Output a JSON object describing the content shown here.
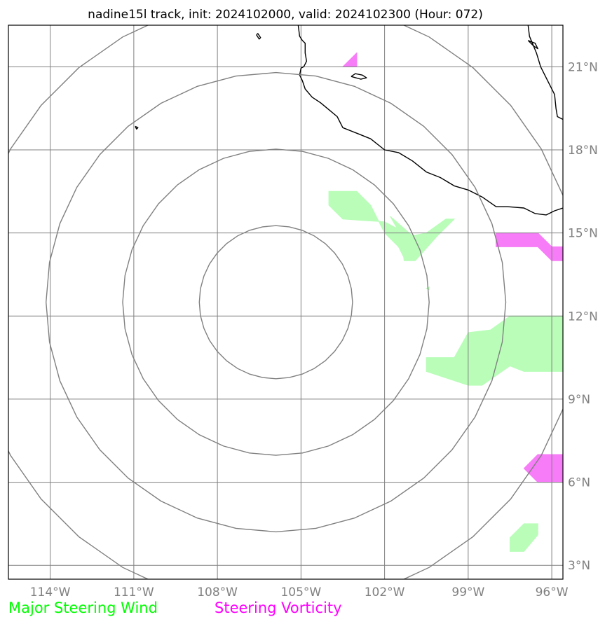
{
  "title": "nadine15l track, init: 2024102000, valid: 2024102300 (Hour: 072)",
  "map": {
    "lon_range": [
      -115.5,
      -95.6
    ],
    "lat_range": [
      2.5,
      22.5
    ],
    "center": {
      "lon": -105.9,
      "lat": 12.5
    },
    "range_ring_radii_deg": [
      2.75,
      5.5,
      8.25,
      11.0
    ],
    "lon_ticks": [
      {
        "value": -114,
        "label": "114°W"
      },
      {
        "value": -111,
        "label": "111°W"
      },
      {
        "value": -108,
        "label": "108°W"
      },
      {
        "value": -105,
        "label": "105°W"
      },
      {
        "value": -102,
        "label": "102°W"
      },
      {
        "value": -99,
        "label": "99°W"
      },
      {
        "value": -96,
        "label": "96°W"
      }
    ],
    "lat_ticks": [
      {
        "value": 21,
        "label": "21°N"
      },
      {
        "value": 18,
        "label": "18°N"
      },
      {
        "value": 15,
        "label": "15°N"
      },
      {
        "value": 12,
        "label": "12°N"
      },
      {
        "value": 9,
        "label": "9°N"
      },
      {
        "value": 6,
        "label": "6°N"
      },
      {
        "value": 3,
        "label": "3°N"
      }
    ],
    "colors": {
      "steering_wind": "#b9fdb9",
      "steering_vorticity": "#f77cf7",
      "grid": "#808080",
      "coast": "#000000"
    },
    "coastlines": [
      [
        [
          -105.1,
          22.5
        ],
        [
          -105.05,
          22.1
        ],
        [
          -104.95,
          21.95
        ],
        [
          -104.85,
          21.85
        ],
        [
          -104.85,
          21.5
        ],
        [
          -104.8,
          21.2
        ],
        [
          -104.9,
          21.0
        ],
        [
          -105.0,
          20.95
        ],
        [
          -105.05,
          20.7
        ],
        [
          -104.95,
          20.5
        ],
        [
          -104.85,
          20.2
        ],
        [
          -104.6,
          19.9
        ],
        [
          -104.3,
          19.7
        ],
        [
          -104.0,
          19.45
        ],
        [
          -103.7,
          19.2
        ],
        [
          -103.5,
          18.8
        ],
        [
          -103.0,
          18.6
        ],
        [
          -102.5,
          18.4
        ],
        [
          -102.0,
          18.0
        ],
        [
          -101.5,
          17.9
        ],
        [
          -101.0,
          17.6
        ],
        [
          -100.5,
          17.2
        ],
        [
          -100.0,
          17.0
        ],
        [
          -99.5,
          16.7
        ],
        [
          -99.0,
          16.55
        ],
        [
          -98.5,
          16.3
        ],
        [
          -98.0,
          15.95
        ],
        [
          -97.6,
          15.95
        ],
        [
          -97.0,
          15.9
        ],
        [
          -96.6,
          15.7
        ],
        [
          -96.2,
          15.65
        ],
        [
          -95.9,
          15.8
        ],
        [
          -95.6,
          15.9
        ]
      ],
      [
        [
          -96.85,
          22.5
        ],
        [
          -96.8,
          22.1
        ],
        [
          -96.55,
          21.5
        ],
        [
          -96.4,
          21.0
        ],
        [
          -96.15,
          20.5
        ],
        [
          -95.9,
          20.0
        ],
        [
          -95.85,
          19.5
        ],
        [
          -95.8,
          19.2
        ],
        [
          -95.6,
          19.1
        ]
      ],
      [
        [
          -96.85,
          21.95
        ],
        [
          -96.65,
          21.75
        ],
        [
          -96.5,
          21.65
        ],
        [
          -96.6,
          21.85
        ],
        [
          -96.85,
          21.95
        ]
      ],
      [
        [
          -103.2,
          20.65
        ],
        [
          -102.85,
          20.55
        ],
        [
          -102.65,
          20.6
        ],
        [
          -102.8,
          20.7
        ],
        [
          -103.05,
          20.75
        ],
        [
          -103.2,
          20.65
        ]
      ],
      [
        [
          -106.6,
          22.15
        ],
        [
          -106.5,
          22.0
        ],
        [
          -106.45,
          22.05
        ],
        [
          -106.55,
          22.2
        ],
        [
          -106.6,
          22.15
        ]
      ],
      [
        [
          -110.95,
          18.85
        ],
        [
          -110.9,
          18.75
        ],
        [
          -110.85,
          18.8
        ],
        [
          -110.95,
          18.85
        ]
      ]
    ],
    "steering_wind_regions": [
      [
        [
          -104.0,
          16.5
        ],
        [
          -103.0,
          16.5
        ],
        [
          -102.5,
          16.0
        ],
        [
          -102.0,
          15.0
        ],
        [
          -101.5,
          14.5
        ],
        [
          -101.25,
          14.0
        ],
        [
          -101.25,
          15.0
        ],
        [
          -102.0,
          15.4
        ],
        [
          -103.5,
          15.5
        ],
        [
          -104.0,
          16.0
        ]
      ],
      [
        [
          -101.8,
          15.6
        ],
        [
          -101.4,
          14.9
        ],
        [
          -101.3,
          14.0
        ],
        [
          -100.9,
          14.0
        ],
        [
          -100.1,
          14.9
        ],
        [
          -99.5,
          15.5
        ],
        [
          -99.8,
          15.5
        ],
        [
          -100.5,
          15.0
        ],
        [
          -101.0,
          14.9
        ]
      ],
      [
        [
          -100.5,
          10.5
        ],
        [
          -99.5,
          10.5
        ],
        [
          -99.0,
          11.4
        ],
        [
          -98.2,
          11.5
        ],
        [
          -97.5,
          12.0
        ],
        [
          -95.6,
          12.0
        ],
        [
          -95.6,
          10.0
        ],
        [
          -97.0,
          10.0
        ],
        [
          -97.5,
          10.2
        ],
        [
          -98.5,
          9.5
        ],
        [
          -99.0,
          9.5
        ],
        [
          -100.5,
          10.0
        ]
      ],
      [
        [
          -97.5,
          4.0
        ],
        [
          -97.0,
          4.5
        ],
        [
          -96.5,
          4.5
        ],
        [
          -96.5,
          4.1
        ],
        [
          -97.0,
          3.5
        ],
        [
          -97.5,
          3.5
        ]
      ],
      [
        [
          -100.5,
          13.0
        ],
        [
          -100.4,
          13.05
        ],
        [
          -100.4,
          12.95
        ]
      ]
    ],
    "steering_vorticity_regions": [
      [
        [
          -103.5,
          21.0
        ],
        [
          -103.0,
          21.5
        ],
        [
          -103.0,
          21.0
        ]
      ],
      [
        [
          -98.0,
          15.0
        ],
        [
          -96.5,
          15.0
        ],
        [
          -96.0,
          14.5
        ],
        [
          -95.6,
          14.5
        ],
        [
          -95.6,
          14.0
        ],
        [
          -96.0,
          14.0
        ],
        [
          -96.5,
          14.5
        ],
        [
          -98.0,
          14.5
        ]
      ],
      [
        [
          -97.0,
          6.5
        ],
        [
          -96.5,
          7.0
        ],
        [
          -95.6,
          7.0
        ],
        [
          -95.6,
          6.0
        ],
        [
          -96.5,
          6.0
        ],
        [
          -97.0,
          6.5
        ]
      ]
    ]
  },
  "legend": {
    "steering_wind_label": "Major Steering Wind",
    "steering_vorticity_label": "Steering Vorticity",
    "steering_wind_color": "#00ff00",
    "steering_vorticity_color": "#ff00ff"
  }
}
